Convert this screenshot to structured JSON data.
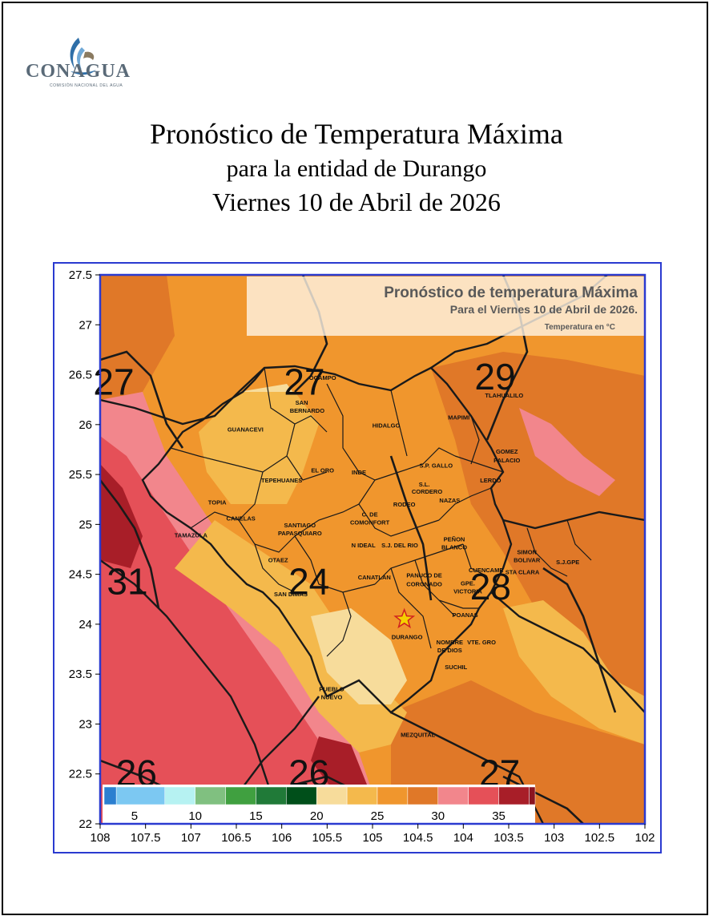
{
  "logo": {
    "name": "CONAGUA",
    "subtitle": "COMISIÓN NACIONAL DEL AGUA"
  },
  "header": {
    "title": "Pronóstico de Temperatura Máxima",
    "subtitle": "para la entidad de Durango",
    "date": "Viernes 10 de Abril de 2026"
  },
  "map": {
    "inset_title": "Pronóstico de temperatura Máxima",
    "inset_date": "Para el Viernes 10 de Abril de 2026.",
    "inset_units": "Temperatura en °C",
    "lat_ticks": [
      "27.5",
      "27",
      "26.5",
      "26",
      "25.5",
      "25",
      "24.5",
      "24",
      "23.5",
      "23",
      "22.5",
      "22"
    ],
    "lon_ticks": [
      "108",
      "107.5",
      "107",
      "106.5",
      "106",
      "105.5",
      "105",
      "104.5",
      "104",
      "103.5",
      "103",
      "102.5",
      "102"
    ],
    "contour_labels": [
      {
        "text": "27",
        "lon": 107.85,
        "lat": 26.3
      },
      {
        "text": "27",
        "lon": 105.75,
        "lat": 26.3
      },
      {
        "text": "29",
        "lon": 103.65,
        "lat": 26.35
      },
      {
        "text": "31",
        "lon": 107.7,
        "lat": 24.3
      },
      {
        "text": "24",
        "lon": 105.7,
        "lat": 24.3
      },
      {
        "text": "28",
        "lon": 103.7,
        "lat": 24.25
      },
      {
        "text": "26",
        "lon": 107.6,
        "lat": 22.38
      },
      {
        "text": "26",
        "lon": 105.7,
        "lat": 22.38
      },
      {
        "text": "27",
        "lon": 103.6,
        "lat": 22.38
      }
    ],
    "municipalities": [
      {
        "name": "OCAMPO",
        "lon": 105.55,
        "lat": 26.45
      },
      {
        "name": "SAN",
        "lon": 105.78,
        "lat": 26.2
      },
      {
        "name": "BERNARDO",
        "lon": 105.72,
        "lat": 26.12
      },
      {
        "name": "GUANACEVI",
        "lon": 106.4,
        "lat": 25.93
      },
      {
        "name": "HIDALGO",
        "lon": 104.85,
        "lat": 25.97
      },
      {
        "name": "MAPIMI",
        "lon": 104.05,
        "lat": 26.05
      },
      {
        "name": "TLAHUALILO",
        "lon": 103.55,
        "lat": 26.27
      },
      {
        "name": "GOMEZ",
        "lon": 103.52,
        "lat": 25.71
      },
      {
        "name": "PALACIO",
        "lon": 103.52,
        "lat": 25.62
      },
      {
        "name": "TEPEHUANES",
        "lon": 106.0,
        "lat": 25.42
      },
      {
        "name": "EL ORO",
        "lon": 105.55,
        "lat": 25.52
      },
      {
        "name": "INDE",
        "lon": 105.15,
        "lat": 25.5
      },
      {
        "name": "S.P. GALLO",
        "lon": 104.3,
        "lat": 25.57
      },
      {
        "name": "LERDO",
        "lon": 103.7,
        "lat": 25.42
      },
      {
        "name": "S.L.",
        "lon": 104.43,
        "lat": 25.38
      },
      {
        "name": "CORDERO",
        "lon": 104.4,
        "lat": 25.31
      },
      {
        "name": "TOPIA",
        "lon": 106.71,
        "lat": 25.2
      },
      {
        "name": "RODEO",
        "lon": 104.65,
        "lat": 25.18
      },
      {
        "name": "NAZAS",
        "lon": 104.15,
        "lat": 25.22
      },
      {
        "name": "CANELAS",
        "lon": 106.45,
        "lat": 25.04
      },
      {
        "name": "C. DE",
        "lon": 105.03,
        "lat": 25.08
      },
      {
        "name": "COMONFORT",
        "lon": 105.03,
        "lat": 25.0
      },
      {
        "name": "SANTIAGO",
        "lon": 105.8,
        "lat": 24.97
      },
      {
        "name": "PAPASQUIARO",
        "lon": 105.8,
        "lat": 24.89
      },
      {
        "name": "TAMAZULA",
        "lon": 107.0,
        "lat": 24.87
      },
      {
        "name": "N IDEAL",
        "lon": 105.1,
        "lat": 24.77
      },
      {
        "name": "S.J. DEL RIO",
        "lon": 104.7,
        "lat": 24.77
      },
      {
        "name": "PEÑON",
        "lon": 104.1,
        "lat": 24.83
      },
      {
        "name": "BLANCO",
        "lon": 104.1,
        "lat": 24.75
      },
      {
        "name": "SIMON",
        "lon": 103.3,
        "lat": 24.7
      },
      {
        "name": "BOLIVAR",
        "lon": 103.3,
        "lat": 24.62
      },
      {
        "name": "S.J.GPE",
        "lon": 102.85,
        "lat": 24.6
      },
      {
        "name": "OTAEZ",
        "lon": 106.04,
        "lat": 24.62
      },
      {
        "name": "CUENCAME",
        "lon": 103.75,
        "lat": 24.52
      },
      {
        "name": "STA CLARA",
        "lon": 103.35,
        "lat": 24.5
      },
      {
        "name": "CANATLAN",
        "lon": 104.98,
        "lat": 24.45
      },
      {
        "name": "PANUCO DE",
        "lon": 104.43,
        "lat": 24.47
      },
      {
        "name": "CORONADO",
        "lon": 104.43,
        "lat": 24.38
      },
      {
        "name": "GPE.",
        "lon": 103.95,
        "lat": 24.39
      },
      {
        "name": "VICTORIA",
        "lon": 103.95,
        "lat": 24.31
      },
      {
        "name": "SAN DIMAS",
        "lon": 105.9,
        "lat": 24.28
      },
      {
        "name": "POANAS",
        "lon": 103.98,
        "lat": 24.07
      },
      {
        "name": "DURANGO",
        "lon": 104.62,
        "lat": 23.85
      },
      {
        "name": "NOMBRE",
        "lon": 104.15,
        "lat": 23.8
      },
      {
        "name": "DE DIOS",
        "lon": 104.15,
        "lat": 23.72
      },
      {
        "name": "VTE. GRO",
        "lon": 103.8,
        "lat": 23.8
      },
      {
        "name": "SUCHIL",
        "lon": 104.08,
        "lat": 23.55
      },
      {
        "name": "PUEBLO",
        "lon": 105.45,
        "lat": 23.33
      },
      {
        "name": "NUEVO",
        "lon": 105.45,
        "lat": 23.25
      },
      {
        "name": "MEZQUITAL",
        "lon": 104.5,
        "lat": 22.87
      }
    ],
    "capital": {
      "name": "Durango capital",
      "lon": 104.65,
      "lat": 24.05
    },
    "legend": {
      "labels": [
        {
          "text": "5",
          "value": 5
        },
        {
          "text": "10",
          "value": 10
        },
        {
          "text": "15",
          "value": 15
        },
        {
          "text": "20",
          "value": 20
        },
        {
          "text": "25",
          "value": 25
        },
        {
          "text": "30",
          "value": 30
        },
        {
          "text": "35",
          "value": 35
        }
      ],
      "bins": [
        {
          "from": 2.5,
          "to": 3.5,
          "color": "#2b7fd0"
        },
        {
          "from": 3.5,
          "to": 7.5,
          "color": "#7cc8f2"
        },
        {
          "from": 7.5,
          "to": 10.0,
          "color": "#b6f2f2"
        },
        {
          "from": 10.0,
          "to": 12.5,
          "color": "#80c080"
        },
        {
          "from": 12.5,
          "to": 15.0,
          "color": "#40a040"
        },
        {
          "from": 15.0,
          "to": 17.5,
          "color": "#207a38"
        },
        {
          "from": 17.5,
          "to": 20.0,
          "color": "#004f1a"
        },
        {
          "from": 20.0,
          "to": 22.5,
          "color": "#f7dc9b"
        },
        {
          "from": 22.5,
          "to": 25.0,
          "color": "#f4b94c"
        },
        {
          "from": 25.0,
          "to": 27.5,
          "color": "#f0962d"
        },
        {
          "from": 27.5,
          "to": 30.0,
          "color": "#e07828"
        },
        {
          "from": 30.0,
          "to": 32.5,
          "color": "#f2868c"
        },
        {
          "from": 32.5,
          "to": 35.0,
          "color": "#e55058"
        },
        {
          "from": 35.0,
          "to": 37.5,
          "color": "#a81e28"
        },
        {
          "from": 37.5,
          "to": 38.0,
          "color": "#8a1420"
        }
      ]
    },
    "colors": {
      "t22": "#f7dc9b",
      "t24": "#f4b94c",
      "t26": "#f0962d",
      "t28": "#e07828",
      "t30": "#f2868c",
      "t32": "#e55058",
      "t35": "#a81e28",
      "frame": "#2a3ad0"
    }
  }
}
